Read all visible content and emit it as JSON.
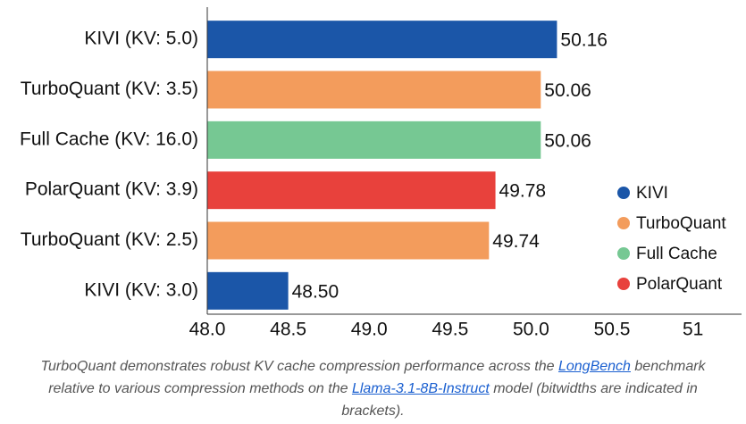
{
  "chart_data": {
    "type": "barh",
    "categories": [
      "KIVI (KV: 5.0)",
      "TurboQuant (KV: 3.5)",
      "Full Cache (KV: 16.0)",
      "PolarQuant (KV: 3.9)",
      "TurboQuant (KV: 2.5)",
      "KIVI (KV: 3.0)"
    ],
    "values": [
      50.16,
      50.06,
      50.06,
      49.78,
      49.74,
      48.5
    ],
    "value_labels": [
      "50.16",
      "50.06",
      "50.06",
      "49.78",
      "49.74",
      "48.50"
    ],
    "colors": [
      "#1b56a8",
      "#f39c5c",
      "#76c893",
      "#e8413c",
      "#f39c5c",
      "#1b56a8"
    ],
    "xlim": [
      48,
      51.3
    ],
    "xticks": [
      {
        "value": 48,
        "label": "48.0"
      },
      48.5,
      {
        "value": 49,
        "label": "49.0"
      },
      49.5,
      {
        "value": 50,
        "label": "50.0"
      },
      50.5,
      51
    ],
    "legend": {
      "position": "right",
      "items": [
        {
          "name": "KIVI",
          "color": "#1b56a8"
        },
        {
          "name": "TurboQuant",
          "color": "#f39c5c"
        },
        {
          "name": "Full Cache",
          "color": "#76c893"
        },
        {
          "name": "PolarQuant",
          "color": "#e8413c"
        }
      ]
    }
  },
  "caption": [
    "TurboQuant demonstrates robust KV cache compression performance across the ",
    "LongBench",
    " benchmark relative to various compression methods on the ",
    "Llama-3.1-8B-Instruct",
    " model (bitwidths are indicated in brackets)."
  ]
}
